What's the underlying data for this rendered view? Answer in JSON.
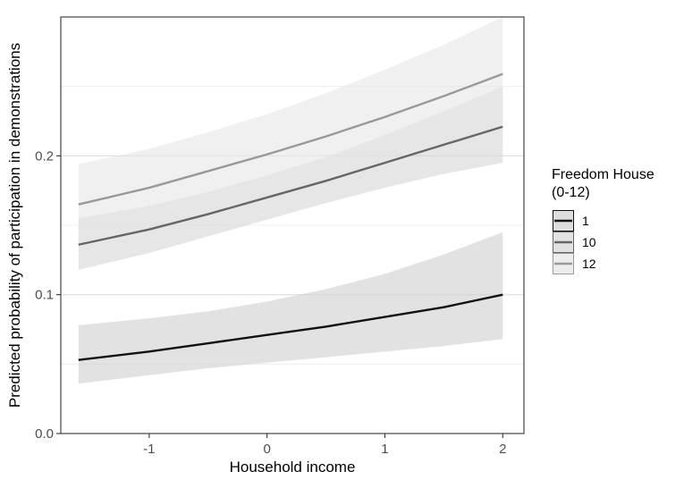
{
  "chart_data": {
    "type": "line",
    "title": "",
    "xlabel": "Household income",
    "ylabel": "Predicted probability of participation in demonstrations",
    "xlim": [
      -1.75,
      2.18
    ],
    "ylim": [
      0,
      0.3
    ],
    "x_ticks": [
      -1,
      0,
      1,
      2
    ],
    "y_ticks": [
      0.0,
      0.1,
      0.2
    ],
    "x_tick_labels": [
      "-1",
      "0",
      "1",
      "2"
    ],
    "y_tick_labels": [
      "0.0",
      "0.1",
      "0.2"
    ],
    "grid": true,
    "legend": {
      "title": "Freedom House (0-12)",
      "title_lines": [
        "Freedom House",
        "(0-12)"
      ],
      "placement": "right"
    },
    "x": [
      -1.6,
      -1.0,
      -0.5,
      0.0,
      0.5,
      1.0,
      1.5,
      2.0
    ],
    "series": [
      {
        "name": "1",
        "color": "#111111",
        "values": [
          0.053,
          0.059,
          0.065,
          0.071,
          0.077,
          0.084,
          0.091,
          0.1
        ],
        "lower": [
          0.036,
          0.042,
          0.047,
          0.051,
          0.055,
          0.059,
          0.063,
          0.068
        ],
        "upper": [
          0.078,
          0.083,
          0.088,
          0.095,
          0.104,
          0.115,
          0.129,
          0.145
        ]
      },
      {
        "name": "10",
        "color": "#666666",
        "values": [
          0.136,
          0.147,
          0.158,
          0.17,
          0.182,
          0.195,
          0.208,
          0.221
        ],
        "lower": [
          0.118,
          0.13,
          0.142,
          0.154,
          0.166,
          0.177,
          0.187,
          0.195
        ],
        "upper": [
          0.155,
          0.164,
          0.174,
          0.186,
          0.199,
          0.215,
          0.232,
          0.25
        ]
      },
      {
        "name": "12",
        "color": "#999999",
        "values": [
          0.165,
          0.177,
          0.189,
          0.201,
          0.214,
          0.228,
          0.243,
          0.259
        ],
        "lower": [
          0.138,
          0.15,
          0.162,
          0.174,
          0.186,
          0.197,
          0.206,
          0.215
        ],
        "upper": [
          0.194,
          0.205,
          0.217,
          0.23,
          0.245,
          0.262,
          0.28,
          0.3
        ]
      }
    ]
  }
}
